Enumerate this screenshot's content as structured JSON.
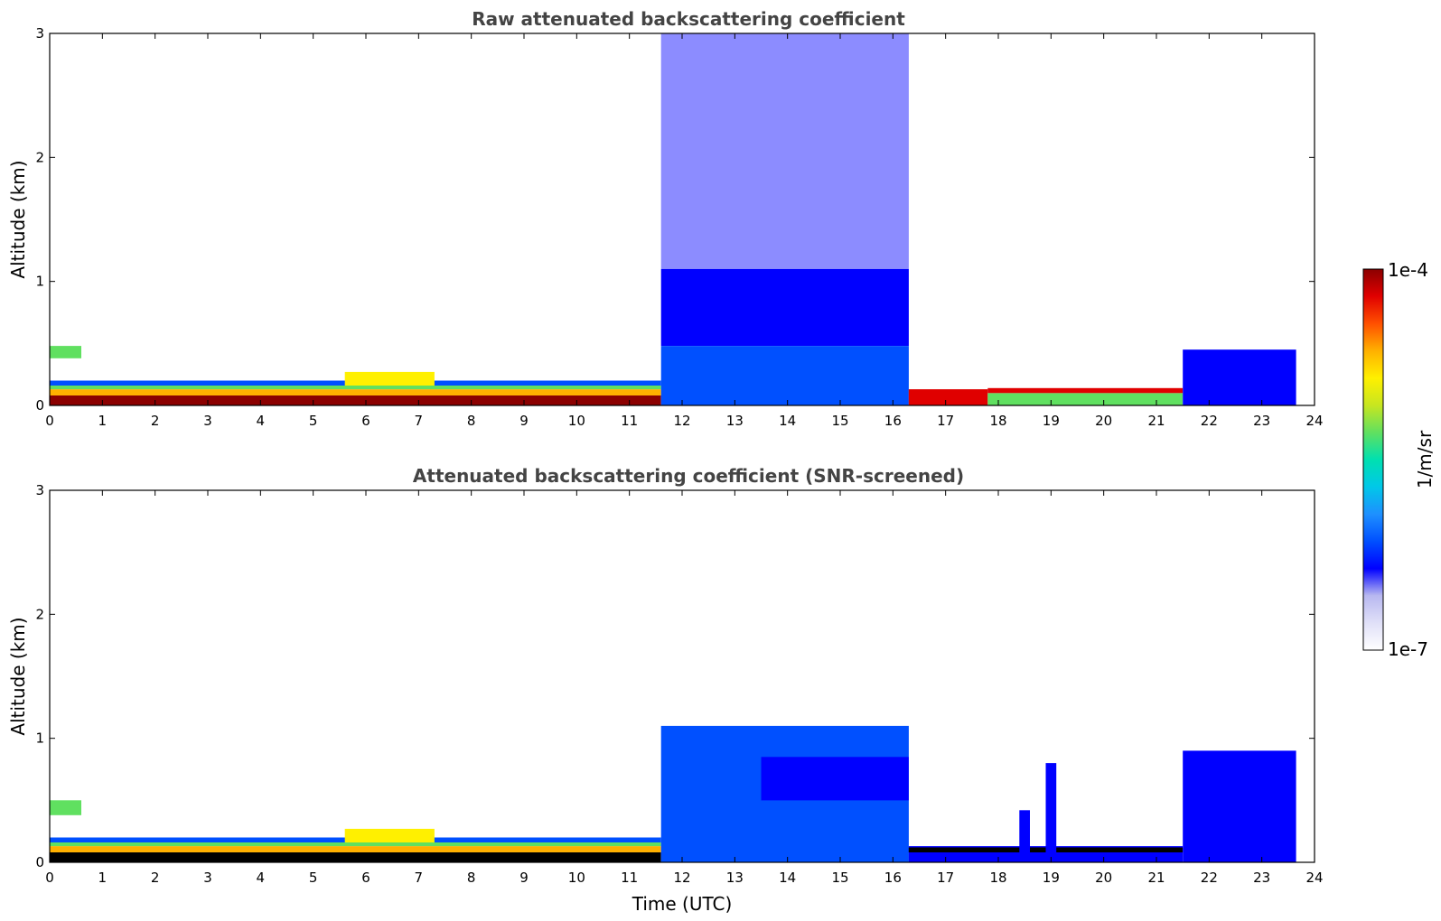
{
  "colorscale": [
    "#ffffff",
    "#e0e0f8",
    "#b8b8f0",
    "#0000ff",
    "#0050ff",
    "#1e90ff",
    "#00c8e8",
    "#00e0b0",
    "#60e060",
    "#c8e620",
    "#fff000",
    "#ffb000",
    "#ff5000",
    "#e00000",
    "#8b0000"
  ],
  "chart_data": [
    {
      "type": "heatmap",
      "title": "Raw attenuated backscattering coefficient",
      "xlabel": "",
      "ylabel": "Altitude (km)",
      "xlim": [
        0,
        24
      ],
      "ylim": [
        0,
        3
      ],
      "x_ticks": [
        "0",
        "1",
        "2",
        "3",
        "4",
        "5",
        "6",
        "7",
        "8",
        "9",
        "10",
        "11",
        "12",
        "13",
        "14",
        "15",
        "16",
        "17",
        "18",
        "19",
        "20",
        "21",
        "22",
        "23",
        "24"
      ],
      "y_ticks": [
        "0",
        "1",
        "2",
        "3"
      ],
      "data_end_hour": 23.65,
      "color_scale": "log",
      "regions": [
        {
          "x": [
            0,
            11.6
          ],
          "y": [
            0,
            0.08
          ],
          "level": 1.0
        },
        {
          "x": [
            0,
            11.6
          ],
          "y": [
            0.08,
            0.13
          ],
          "level": 0.8
        },
        {
          "x": [
            0,
            11.6
          ],
          "y": [
            0.13,
            0.16
          ],
          "level": 0.55
        },
        {
          "x": [
            0,
            11.6
          ],
          "y": [
            0.16,
            0.2
          ],
          "level": 0.3
        },
        {
          "x": [
            5.6,
            7.3
          ],
          "y": [
            0.16,
            0.27
          ],
          "level": 0.7
        },
        {
          "x": [
            11.6,
            16.3
          ],
          "y": [
            0,
            0.48
          ],
          "level": 0.3
        },
        {
          "x": [
            11.6,
            16.3
          ],
          "y": [
            0.48,
            1.1
          ],
          "level": 0.22
        },
        {
          "x": [
            11.6,
            16.3
          ],
          "y": [
            1.1,
            3
          ],
          "level": 0.18,
          "sparse": true
        },
        {
          "x": [
            16.3,
            17.8
          ],
          "y": [
            0,
            0.13
          ],
          "level": 0.9
        },
        {
          "x": [
            17.8,
            21.5
          ],
          "y": [
            0,
            0.1
          ],
          "level": 0.6
        },
        {
          "x": [
            17.8,
            21.5
          ],
          "y": [
            0.1,
            0.14
          ],
          "level": 0.9
        },
        {
          "x": [
            21.5,
            23.65
          ],
          "y": [
            0,
            0.45
          ],
          "level": 0.22
        },
        {
          "x": [
            0,
            0.6
          ],
          "y": [
            0.38,
            0.48
          ],
          "level": 0.55
        }
      ]
    },
    {
      "type": "heatmap",
      "title": "Attenuated backscattering coefficient (SNR-screened)",
      "xlabel": "Time (UTC)",
      "ylabel": "Altitude (km)",
      "xlim": [
        0,
        24
      ],
      "ylim": [
        0,
        3
      ],
      "x_ticks": [
        "0",
        "1",
        "2",
        "3",
        "4",
        "5",
        "6",
        "7",
        "8",
        "9",
        "10",
        "11",
        "12",
        "13",
        "14",
        "15",
        "16",
        "17",
        "18",
        "19",
        "20",
        "21",
        "22",
        "23",
        "24"
      ],
      "y_ticks": [
        "0",
        "1",
        "2",
        "3"
      ],
      "data_end_hour": 23.65,
      "color_scale": "log",
      "regions": [
        {
          "x": [
            0,
            11.6
          ],
          "y": [
            0,
            0.08
          ],
          "level": 1.0,
          "color": "#000000"
        },
        {
          "x": [
            0,
            11.6
          ],
          "y": [
            0.08,
            0.13
          ],
          "level": 0.8
        },
        {
          "x": [
            0,
            11.6
          ],
          "y": [
            0.13,
            0.16
          ],
          "level": 0.55
        },
        {
          "x": [
            0,
            11.6
          ],
          "y": [
            0.16,
            0.2
          ],
          "level": 0.3
        },
        {
          "x": [
            5.6,
            7.3
          ],
          "y": [
            0.16,
            0.27
          ],
          "level": 0.7
        },
        {
          "x": [
            11.6,
            16.3
          ],
          "y": [
            0,
            1.1
          ],
          "level": 0.25
        },
        {
          "x": [
            13.5,
            16.3
          ],
          "y": [
            0.5,
            0.85
          ],
          "level": 0.22
        },
        {
          "x": [
            16.3,
            21.5
          ],
          "y": [
            0,
            0.13
          ],
          "level": 0.2
        },
        {
          "x": [
            16.3,
            21.5
          ],
          "y": [
            0.08,
            0.12
          ],
          "level": 1.0,
          "color": "#000000"
        },
        {
          "x": [
            18.4,
            18.6
          ],
          "y": [
            0,
            0.42
          ],
          "level": 0.2
        },
        {
          "x": [
            18.9,
            19.1
          ],
          "y": [
            0,
            0.8
          ],
          "level": 0.2
        },
        {
          "x": [
            21.5,
            23.65
          ],
          "y": [
            0,
            0.9
          ],
          "level": 0.2
        },
        {
          "x": [
            0,
            0.6
          ],
          "y": [
            0.38,
            0.5
          ],
          "level": 0.55
        }
      ]
    }
  ],
  "colorbar": {
    "label": "1/m/sr",
    "max_label": "1e-4",
    "min_label": "1e-7"
  }
}
